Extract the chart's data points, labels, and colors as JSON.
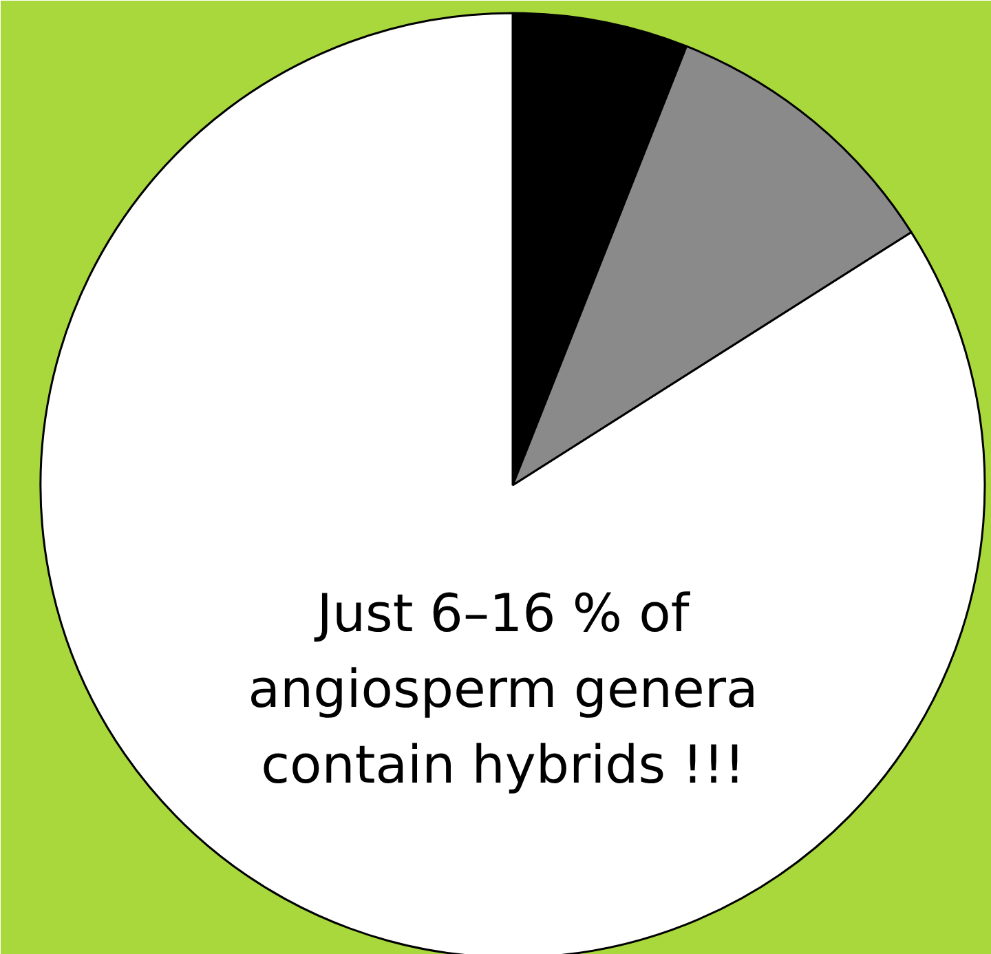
{
  "chart_data": {
    "type": "pie",
    "categories": [
      null,
      null,
      null
    ],
    "values": [
      6,
      10,
      84
    ],
    "colors": [
      "#000000",
      "#8a8a8a",
      "#ffffff"
    ],
    "annotations": [
      "Just 6–16 % of angiosperm genera contain hybrids !!!"
    ]
  }
}
